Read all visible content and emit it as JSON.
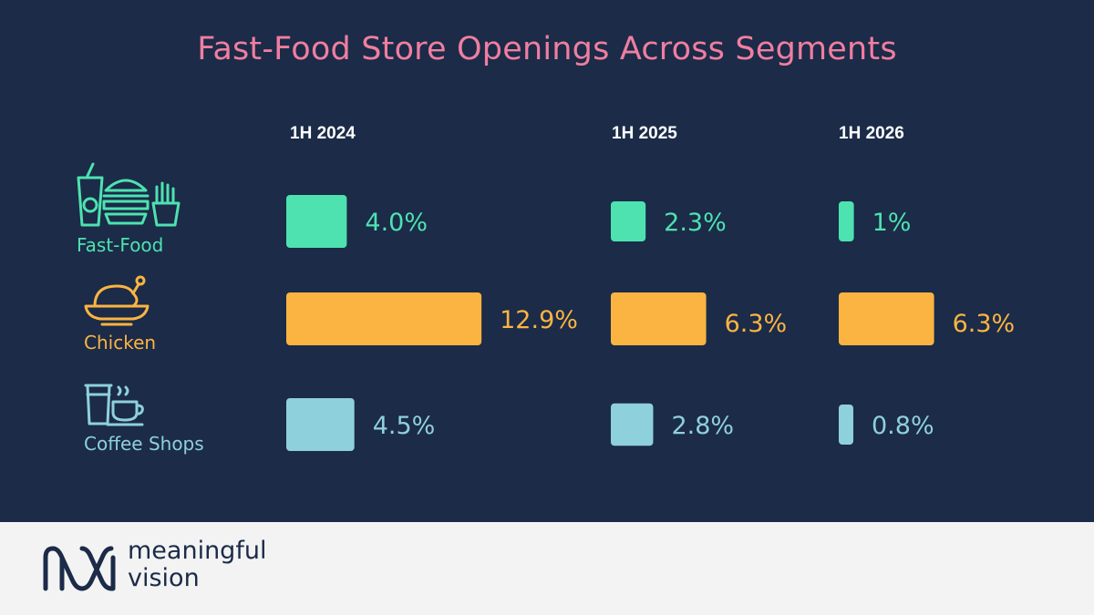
{
  "title": "Fast-Food Store Openings Across Segments",
  "brand": {
    "line1": "meaningful",
    "line2": "vision"
  },
  "colors": {
    "background": "#1b2b48",
    "title": "#f07ea0",
    "fast_food": "#4ee2b0",
    "chicken": "#fbb442",
    "coffee_shops": "#8fd0dd",
    "footer": "#f3f3f3"
  },
  "segments": [
    {
      "label": "Fast-Food",
      "icon": "fast-food-icon"
    },
    {
      "label": "Chicken",
      "icon": "chicken-dish-icon"
    },
    {
      "label": "Coffee Shops",
      "icon": "coffee-cups-icon"
    }
  ],
  "chart_data": {
    "type": "bar",
    "title": "Fast-Food Store Openings Across Segments",
    "categories": [
      "1H 2024",
      "1H 2025",
      "1H 2026"
    ],
    "series": [
      {
        "name": "Fast-Food",
        "values": [
          4.0,
          2.3,
          1
        ],
        "labels": [
          "4.0%",
          "2.3%",
          "1%"
        ],
        "color": "#4ee2b0"
      },
      {
        "name": "Chicken",
        "values": [
          12.9,
          6.3,
          6.3
        ],
        "labels": [
          "12.9%",
          "6.3%",
          "6.3%"
        ],
        "color": "#fbb442"
      },
      {
        "name": "Coffee Shops",
        "values": [
          4.5,
          2.8,
          0.8
        ],
        "labels": [
          "4.5%",
          "2.8%",
          "0.8%"
        ],
        "color": "#8fd0dd"
      }
    ],
    "unit": "%",
    "grid": false,
    "legend": "left"
  }
}
